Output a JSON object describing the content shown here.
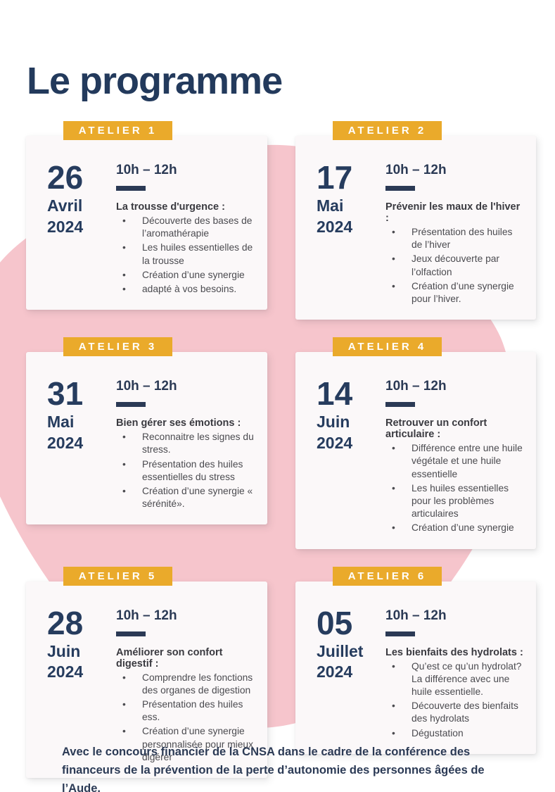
{
  "page": {
    "title": "Le programme",
    "footer": "Avec le concours financier de la CNSA dans le cadre de la conférence des financeurs de la prévention de la perte d’autonomie des personnes âgées de l’Aude."
  },
  "colors": {
    "navy": "#263C5E",
    "badge_yellow": "#EAAA2B",
    "blob_pink": "#F6C5CC",
    "card_background": "#FBF8F9",
    "bullet_text": "#4B4B50"
  },
  "workshops": [
    {
      "badge": "ATELIER 1",
      "day": "26",
      "month": "Avril",
      "year": "2024",
      "time": "10h – 12h",
      "topic": "La trousse d'urgence :",
      "bullets": [
        "Découverte des bases de l’aromathérapie",
        "Les huiles essentielles de la trousse",
        "Création d’une synergie",
        "adapté à vos besoins."
      ]
    },
    {
      "badge": "ATELIER 2",
      "day": "17",
      "month": "Mai",
      "year": "2024",
      "time": "10h – 12h",
      "topic": "Prévenir les maux de l'hiver :",
      "bullets": [
        "Présentation des huiles de l’hiver",
        "Jeux découverte par l’olfaction",
        "Création d’une synergie pour l’hiver."
      ]
    },
    {
      "badge": "ATELIER 3",
      "day": "31",
      "month": "Mai",
      "year": "2024",
      "time": "10h – 12h",
      "topic": "Bien gérer ses émotions :",
      "bullets": [
        "Reconnaitre les signes du stress.",
        "Présentation des huiles essentielles du stress",
        "Création d’une synergie « sérénité»."
      ]
    },
    {
      "badge": "ATELIER 4",
      "day": "14",
      "month": "Juin",
      "year": "2024",
      "time": "10h – 12h",
      "topic": "Retrouver un confort articulaire :",
      "bullets": [
        "Différence entre une huile végétale et une huile essentielle",
        "Les huiles essentielles pour les problèmes articulaires",
        "Création d’une synergie"
      ]
    },
    {
      "badge": "ATELIER 5",
      "day": "28",
      "month": "Juin",
      "year": "2024",
      "time": "10h – 12h",
      "topic": "Améliorer son confort digestif :",
      "bullets": [
        "Comprendre les fonctions des organes de digestion",
        "Présentation des huiles ess.",
        "Création d’une synergie personnalisée pour mieux digérer"
      ]
    },
    {
      "badge": "ATELIER 6",
      "day": "05",
      "month": "Juillet",
      "year": "2024",
      "time": "10h – 12h",
      "topic": "Les bienfaits des hydrolats :",
      "bullets": [
        "Qu’est ce qu’un hydrolat? La différence avec une huile essentielle.",
        "Découverte des bienfaits  des hydrolats",
        "Dégustation"
      ]
    }
  ]
}
